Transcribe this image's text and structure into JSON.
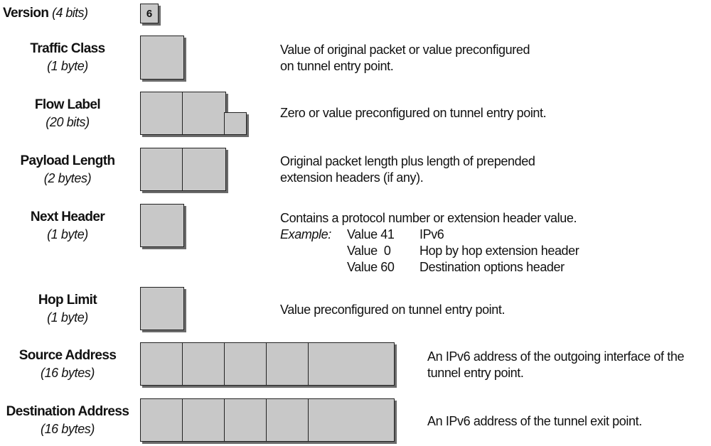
{
  "version": {
    "name": "Version",
    "size": "(4 bits)",
    "value": "6"
  },
  "fields": [
    {
      "name": "Traffic Class",
      "size": "(1 byte)",
      "desc1": "Value of original packet or value preconfigured",
      "desc2": "on tunnel entry point."
    },
    {
      "name": "Flow Label",
      "size": "(20 bits)",
      "desc1": "Zero or value preconfigured on tunnel entry point.",
      "desc2": ""
    },
    {
      "name": "Payload Length",
      "size": "(2 bytes)",
      "desc1": "Original packet length plus length of prepended",
      "desc2": "extension headers (if any)."
    },
    {
      "name": "Next Header",
      "size": "(1 byte)",
      "desc1": "Contains a protocol number or extension header value.",
      "desc2": ""
    },
    {
      "name": "Hop Limit",
      "size": "(1 byte)",
      "desc1": "Value preconfigured on tunnel entry point.",
      "desc2": ""
    },
    {
      "name": "Source Address",
      "size": "(16 bytes)",
      "desc1": "An IPv6 address of the outgoing interface of the",
      "desc2": "tunnel entry point."
    },
    {
      "name": "Destination Address",
      "size": "(16 bytes)",
      "desc1": "An IPv6 address of the tunnel exit point.",
      "desc2": ""
    }
  ],
  "example": {
    "label": "Example:",
    "rows": [
      {
        "value": "Value 41",
        "meaning": "IPv6"
      },
      {
        "value": "Value  0",
        "meaning": "Hop by hop extension header"
      },
      {
        "value": "Value 60",
        "meaning": "Destination options header"
      }
    ]
  }
}
